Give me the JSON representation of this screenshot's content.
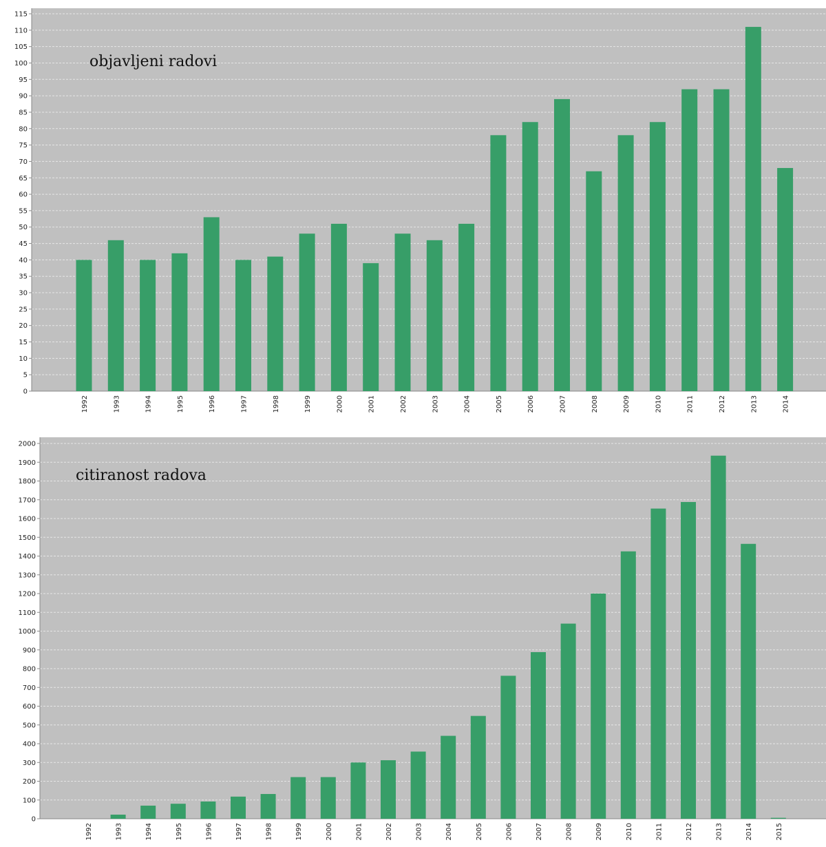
{
  "colors": {
    "bar": "#379e68",
    "plot_bg": "#c0c0c0",
    "grid": "#e6e6e6",
    "axis": "#888888"
  },
  "chart_data": [
    {
      "type": "bar",
      "title": "objavljeni radovi",
      "xlabel": "",
      "ylabel": "",
      "ylim": [
        0,
        115
      ],
      "ytick_step": 5,
      "grid": true,
      "categories": [
        "1992",
        "1993",
        "1994",
        "1995",
        "1996",
        "1997",
        "1998",
        "1999",
        "2000",
        "2001",
        "2002",
        "2003",
        "2004",
        "2005",
        "2006",
        "2007",
        "2008",
        "2009",
        "2010",
        "2011",
        "2012",
        "2013",
        "2014"
      ],
      "values": [
        40,
        46,
        40,
        42,
        53,
        40,
        41,
        48,
        51,
        39,
        48,
        46,
        51,
        78,
        82,
        89,
        67,
        78,
        82,
        92,
        92,
        111,
        68
      ]
    },
    {
      "type": "bar",
      "title": "citiranost radova",
      "xlabel": "",
      "ylabel": "",
      "ylim": [
        0,
        2000
      ],
      "ytick_step": 100,
      "grid": true,
      "categories": [
        "1992",
        "1993",
        "1994",
        "1995",
        "1996",
        "1997",
        "1998",
        "1999",
        "2000",
        "2001",
        "2002",
        "2003",
        "2004",
        "2005",
        "2006",
        "2007",
        "2008",
        "2009",
        "2010",
        "2011",
        "2012",
        "2013",
        "2014",
        "2015"
      ],
      "values": [
        0,
        22,
        70,
        80,
        92,
        118,
        132,
        222,
        222,
        300,
        312,
        358,
        442,
        548,
        762,
        888,
        1040,
        1200,
        1425,
        1653,
        1688,
        1935,
        1465,
        5
      ]
    }
  ]
}
